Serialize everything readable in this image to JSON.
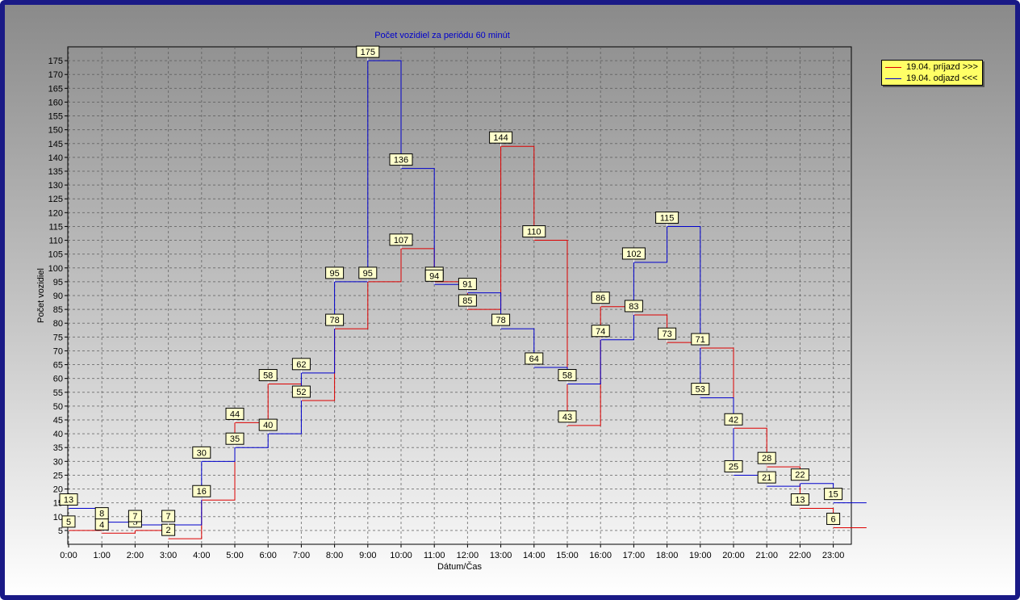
{
  "chart_data": {
    "type": "line",
    "step": true,
    "title": "Počet vozidiel za periódu 60 minút",
    "xlabel": "Dátum/Čas",
    "ylabel": "Počet vozidiel",
    "ylim": [
      0,
      180
    ],
    "yticks": [
      5,
      10,
      15,
      20,
      25,
      30,
      35,
      40,
      45,
      50,
      55,
      60,
      65,
      70,
      75,
      80,
      85,
      90,
      95,
      100,
      105,
      110,
      115,
      120,
      125,
      130,
      135,
      140,
      145,
      150,
      155,
      160,
      165,
      170,
      175
    ],
    "categories": [
      "0:00",
      "1:00",
      "2:00",
      "3:00",
      "4:00",
      "5:00",
      "6:00",
      "7:00",
      "8:00",
      "9:00",
      "10:00",
      "11:00",
      "12:00",
      "13:00",
      "14:00",
      "15:00",
      "16:00",
      "17:00",
      "18:00",
      "19:00",
      "20:00",
      "21:00",
      "22:00",
      "23:00"
    ],
    "grid": true,
    "legend_position": "top-right",
    "series": [
      {
        "name": "19.04.  príjazd >>>",
        "color": "#dd0000",
        "values": [
          5,
          4,
          5,
          2,
          16,
          44,
          58,
          52,
          78,
          95,
          107,
          95,
          85,
          144,
          110,
          43,
          86,
          83,
          73,
          71,
          42,
          28,
          13,
          6
        ]
      },
      {
        "name": "19.04.  odjazd <<<",
        "color": "#0000cc",
        "values": [
          13,
          8,
          7,
          7,
          30,
          35,
          40,
          62,
          95,
          175,
          136,
          94,
          91,
          78,
          64,
          58,
          74,
          102,
          115,
          53,
          25,
          21,
          22,
          15
        ]
      }
    ]
  }
}
